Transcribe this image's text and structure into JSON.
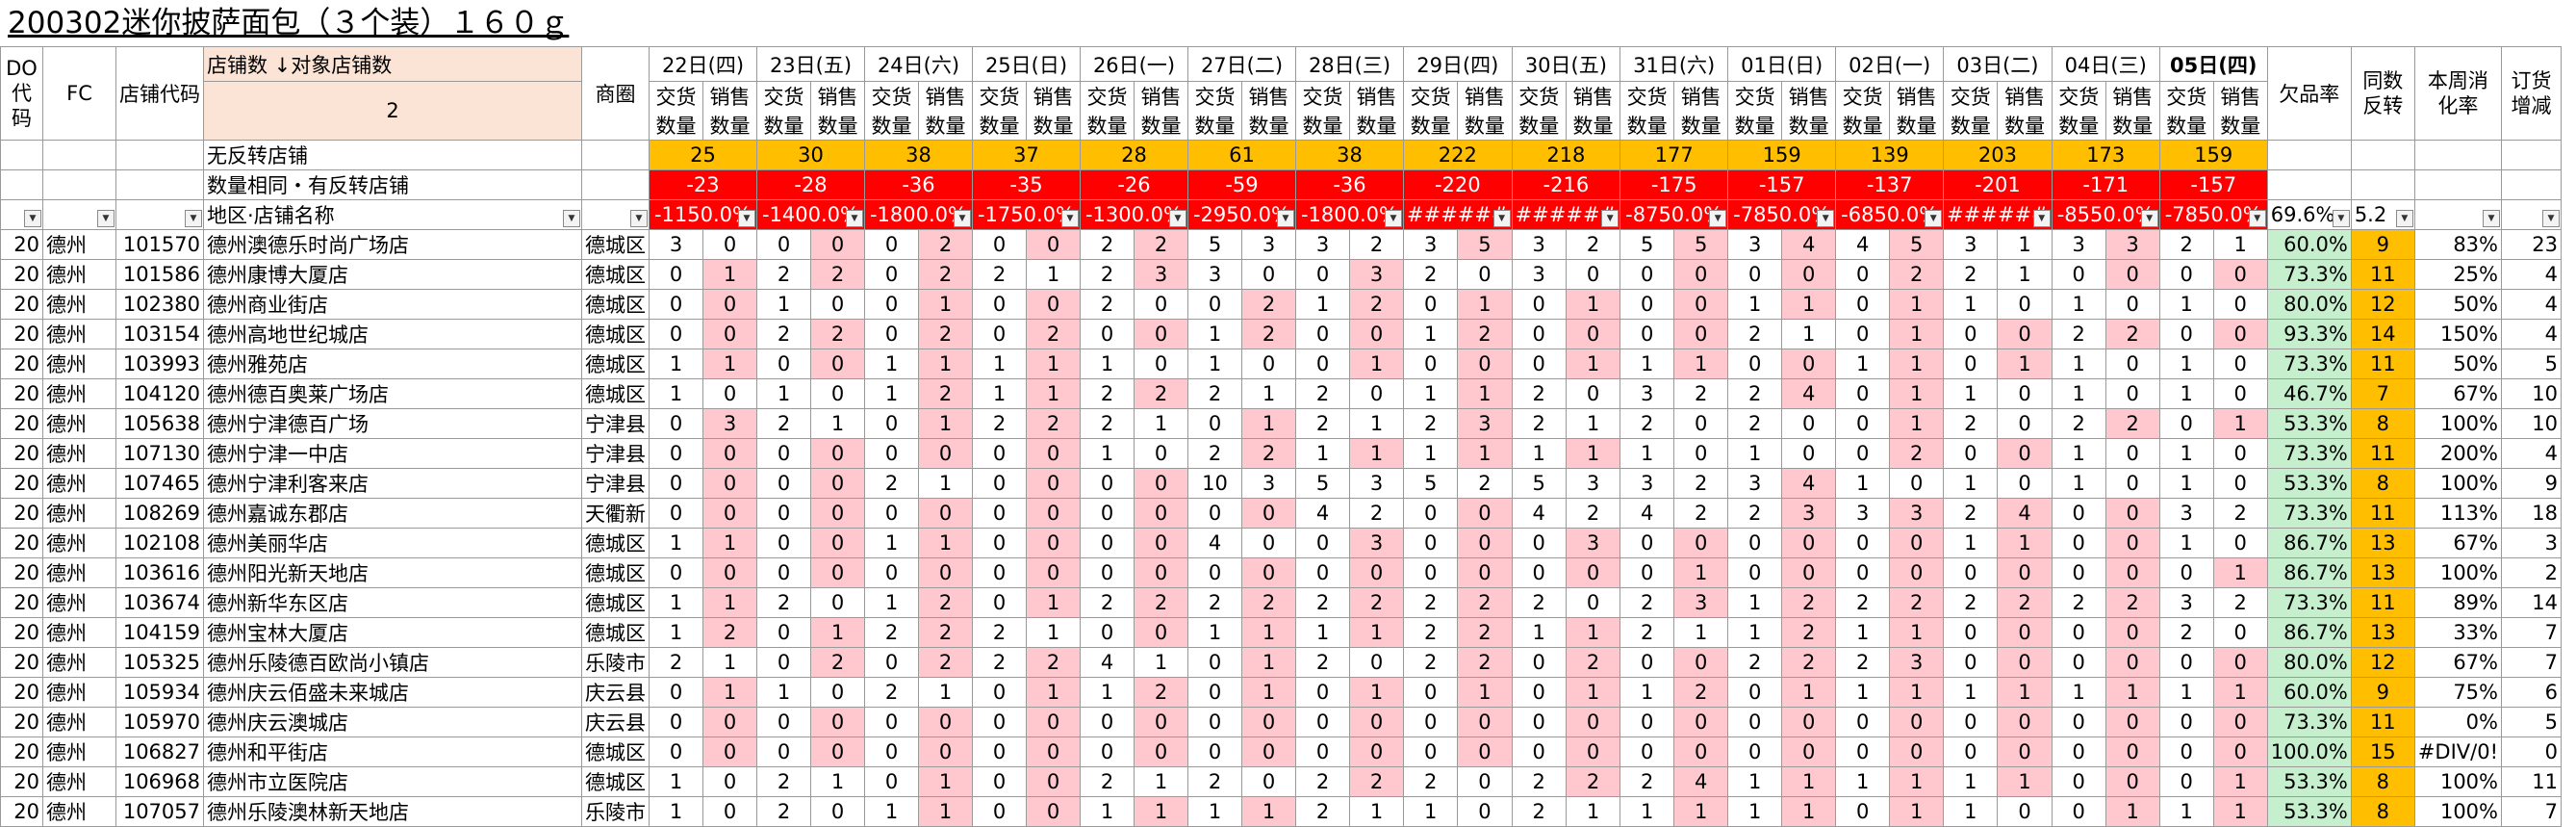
{
  "sheet_title": "200302迷你披萨面包（３个装）１６０ｇ",
  "labels": {
    "do": "DO代码",
    "fc": "FC",
    "store_code": "店铺代码",
    "store_count": "店铺数",
    "target_store_count": "对象店铺数",
    "target_value": "2",
    "shopping_area": "商圈",
    "delivery_qty": "交货数量",
    "sales_qty": "销售数量",
    "no_reversal": "无反转店铺",
    "same_qty_reversal": "数量相同・有反转店铺",
    "region_store": "地区·店铺名称",
    "stockout_rate": "欠品率",
    "same_reversal": "同数反转",
    "week_consumption": "本周消化率",
    "order_change": "订货增减"
  },
  "dates": [
    "22日(四)",
    "23日(五)",
    "24日(六)",
    "25日(日)",
    "26日(一)",
    "27日(二)",
    "28日(三)",
    "29日(四)",
    "30日(五)",
    "31日(六)",
    "01日(日)",
    "02日(一)",
    "03日(二)",
    "04日(三)",
    "05日(四)"
  ],
  "no_reversal_values": [
    "25",
    "30",
    "38",
    "37",
    "28",
    "61",
    "38",
    "222",
    "218",
    "177",
    "159",
    "139",
    "203",
    "173",
    "159"
  ],
  "same_qty_values": [
    "-23",
    "-28",
    "-36",
    "-35",
    "-26",
    "-59",
    "-36",
    "-220",
    "-216",
    "-175",
    "-157",
    "-137",
    "-201",
    "-171",
    "-157"
  ],
  "filter_values": [
    "-1150.0%",
    "-1400.0%",
    "-1800.0%",
    "-1750.0%",
    "-1300.0%",
    "-2950.0%",
    "-1800.0%",
    "######",
    "######",
    "-8750.0%",
    "-7850.0%",
    "-6850.0%",
    "######",
    "-8550.0%",
    "-7850.0%"
  ],
  "filter_summary": {
    "stockout": "69.6%",
    "reversal": "5.2"
  },
  "rows": [
    {
      "do": "20",
      "fc": "德州",
      "code": "101570",
      "name": "德州澳德乐时尚广场店",
      "area": "德城区",
      "v": [
        3,
        0,
        0,
        0,
        0,
        2,
        0,
        0,
        2,
        2,
        5,
        3,
        3,
        2,
        3,
        5,
        3,
        2,
        5,
        5,
        3,
        4,
        4,
        5,
        3,
        1,
        3,
        3,
        2,
        1
      ],
      "rate": "60.0%",
      "rev": "9",
      "cons": "83%",
      "chg": "23"
    },
    {
      "do": "20",
      "fc": "德州",
      "code": "101586",
      "name": "德州康博大厦店",
      "area": "德城区",
      "v": [
        0,
        1,
        2,
        2,
        0,
        2,
        2,
        1,
        2,
        3,
        3,
        0,
        0,
        3,
        2,
        0,
        3,
        0,
        0,
        0,
        0,
        0,
        0,
        2,
        2,
        1,
        0,
        0,
        0,
        0
      ],
      "rate": "73.3%",
      "rev": "11",
      "cons": "25%",
      "chg": "4"
    },
    {
      "do": "20",
      "fc": "德州",
      "code": "102380",
      "name": "德州商业街店",
      "area": "德城区",
      "v": [
        0,
        0,
        1,
        0,
        0,
        1,
        0,
        0,
        2,
        0,
        0,
        2,
        1,
        2,
        0,
        1,
        0,
        1,
        0,
        0,
        1,
        1,
        0,
        1,
        1,
        0,
        1,
        0,
        1,
        0
      ],
      "rate": "80.0%",
      "rev": "12",
      "cons": "50%",
      "chg": "4"
    },
    {
      "do": "20",
      "fc": "德州",
      "code": "103154",
      "name": "德州高地世纪城店",
      "area": "德城区",
      "v": [
        0,
        0,
        2,
        2,
        0,
        2,
        0,
        2,
        0,
        0,
        1,
        2,
        0,
        0,
        1,
        2,
        0,
        0,
        0,
        0,
        2,
        1,
        0,
        1,
        0,
        0,
        2,
        2,
        0,
        0
      ],
      "rate": "93.3%",
      "rev": "14",
      "cons": "150%",
      "chg": "4"
    },
    {
      "do": "20",
      "fc": "德州",
      "code": "103993",
      "name": "德州雅苑店",
      "area": "德城区",
      "v": [
        1,
        1,
        0,
        0,
        1,
        1,
        1,
        1,
        1,
        0,
        1,
        0,
        0,
        1,
        0,
        0,
        0,
        1,
        1,
        1,
        0,
        0,
        1,
        1,
        0,
        1,
        1,
        0,
        1,
        0
      ],
      "rate": "73.3%",
      "rev": "11",
      "cons": "50%",
      "chg": "5"
    },
    {
      "do": "20",
      "fc": "德州",
      "code": "104120",
      "name": "德州德百奥莱广场店",
      "area": "德城区",
      "v": [
        1,
        0,
        1,
        0,
        1,
        2,
        1,
        1,
        2,
        2,
        2,
        1,
        2,
        0,
        1,
        1,
        2,
        0,
        3,
        2,
        2,
        4,
        0,
        1,
        1,
        0,
        1,
        0,
        1,
        0
      ],
      "rate": "46.7%",
      "rev": "7",
      "cons": "67%",
      "chg": "10"
    },
    {
      "do": "20",
      "fc": "德州",
      "code": "105638",
      "name": "德州宁津德百广场",
      "area": "宁津县",
      "v": [
        0,
        3,
        2,
        1,
        0,
        1,
        2,
        2,
        2,
        1,
        0,
        1,
        2,
        1,
        2,
        3,
        2,
        1,
        2,
        0,
        2,
        0,
        0,
        1,
        2,
        0,
        2,
        2,
        0,
        1
      ],
      "rate": "53.3%",
      "rev": "8",
      "cons": "100%",
      "chg": "10"
    },
    {
      "do": "20",
      "fc": "德州",
      "code": "107130",
      "name": "德州宁津一中店",
      "area": "宁津县",
      "v": [
        0,
        0,
        0,
        0,
        0,
        0,
        0,
        0,
        1,
        0,
        2,
        2,
        1,
        1,
        1,
        1,
        1,
        1,
        1,
        0,
        1,
        0,
        0,
        2,
        0,
        0,
        1,
        0,
        1,
        0
      ],
      "rate": "73.3%",
      "rev": "11",
      "cons": "200%",
      "chg": "4"
    },
    {
      "do": "20",
      "fc": "德州",
      "code": "107465",
      "name": "德州宁津利客来店",
      "area": "宁津县",
      "v": [
        0,
        0,
        0,
        0,
        2,
        1,
        0,
        0,
        0,
        0,
        10,
        3,
        5,
        3,
        5,
        2,
        5,
        3,
        3,
        2,
        3,
        4,
        1,
        0,
        1,
        0,
        1,
        0,
        1,
        0
      ],
      "rate": "53.3%",
      "rev": "8",
      "cons": "100%",
      "chg": "9"
    },
    {
      "do": "20",
      "fc": "德州",
      "code": "108269",
      "name": "德州嘉诚东郡店",
      "area": "天衢新",
      "v": [
        0,
        0,
        0,
        0,
        0,
        0,
        0,
        0,
        0,
        0,
        0,
        0,
        4,
        2,
        0,
        0,
        4,
        2,
        4,
        2,
        2,
        3,
        3,
        3,
        2,
        4,
        0,
        0,
        3,
        2
      ],
      "rate": "73.3%",
      "rev": "11",
      "cons": "113%",
      "chg": "18"
    },
    {
      "do": "20",
      "fc": "德州",
      "code": "102108",
      "name": "德州美丽华店",
      "area": "德城区",
      "v": [
        1,
        1,
        0,
        0,
        1,
        1,
        0,
        0,
        0,
        0,
        4,
        0,
        0,
        3,
        0,
        0,
        0,
        3,
        0,
        0,
        0,
        0,
        0,
        0,
        1,
        1,
        0,
        0,
        1,
        0
      ],
      "rate": "86.7%",
      "rev": "13",
      "cons": "67%",
      "chg": "3"
    },
    {
      "do": "20",
      "fc": "德州",
      "code": "103616",
      "name": "德州阳光新天地店",
      "area": "德城区",
      "v": [
        0,
        0,
        0,
        0,
        0,
        0,
        0,
        0,
        0,
        0,
        0,
        0,
        0,
        0,
        0,
        0,
        0,
        0,
        0,
        1,
        0,
        0,
        0,
        0,
        0,
        0,
        0,
        0,
        0,
        1
      ],
      "rate": "86.7%",
      "rev": "13",
      "cons": "100%",
      "chg": "2"
    },
    {
      "do": "20",
      "fc": "德州",
      "code": "103674",
      "name": "德州新华东区店",
      "area": "德城区",
      "v": [
        1,
        1,
        2,
        0,
        1,
        2,
        0,
        1,
        2,
        2,
        2,
        2,
        2,
        2,
        2,
        2,
        2,
        0,
        2,
        3,
        1,
        2,
        2,
        2,
        2,
        2,
        2,
        2,
        3,
        2
      ],
      "rate": "73.3%",
      "rev": "11",
      "cons": "89%",
      "chg": "14"
    },
    {
      "do": "20",
      "fc": "德州",
      "code": "104159",
      "name": "德州宝林大厦店",
      "area": "德城区",
      "v": [
        1,
        2,
        0,
        1,
        2,
        2,
        2,
        1,
        0,
        0,
        1,
        1,
        1,
        1,
        2,
        2,
        1,
        1,
        2,
        1,
        1,
        2,
        1,
        1,
        0,
        0,
        0,
        0,
        2,
        0
      ],
      "rate": "86.7%",
      "rev": "13",
      "cons": "33%",
      "chg": "7"
    },
    {
      "do": "20",
      "fc": "德州",
      "code": "105325",
      "name": "德州乐陵德百欧尚小镇店",
      "area": "乐陵市",
      "v": [
        2,
        1,
        0,
        2,
        0,
        2,
        2,
        2,
        4,
        1,
        0,
        1,
        2,
        0,
        2,
        2,
        0,
        2,
        0,
        0,
        2,
        2,
        2,
        3,
        0,
        0,
        0,
        0,
        0,
        0
      ],
      "rate": "80.0%",
      "rev": "12",
      "cons": "67%",
      "chg": "7"
    },
    {
      "do": "20",
      "fc": "德州",
      "code": "105934",
      "name": "德州庆云佰盛未来城店",
      "area": "庆云县",
      "v": [
        0,
        1,
        1,
        0,
        2,
        1,
        0,
        1,
        1,
        2,
        0,
        1,
        0,
        1,
        0,
        1,
        0,
        1,
        1,
        2,
        0,
        1,
        1,
        1,
        1,
        1,
        1,
        1,
        1,
        1
      ],
      "rate": "60.0%",
      "rev": "9",
      "cons": "75%",
      "chg": "6"
    },
    {
      "do": "20",
      "fc": "德州",
      "code": "105970",
      "name": "德州庆云澳城店",
      "area": "庆云县",
      "v": [
        0,
        0,
        0,
        0,
        0,
        0,
        0,
        0,
        0,
        0,
        0,
        0,
        0,
        0,
        0,
        0,
        0,
        0,
        0,
        0,
        0,
        0,
        0,
        0,
        0,
        0,
        0,
        0,
        0,
        0
      ],
      "rate": "73.3%",
      "rev": "11",
      "cons": "0%",
      "chg": "5"
    },
    {
      "do": "20",
      "fc": "德州",
      "code": "106827",
      "name": "德州和平街店",
      "area": "德城区",
      "v": [
        0,
        0,
        0,
        0,
        0,
        0,
        0,
        0,
        0,
        0,
        0,
        0,
        0,
        0,
        0,
        0,
        0,
        0,
        0,
        0,
        0,
        0,
        0,
        0,
        0,
        0,
        0,
        0,
        0,
        0
      ],
      "rate": "100.0%",
      "rev": "15",
      "cons": "#DIV/0!",
      "chg": "0"
    },
    {
      "do": "20",
      "fc": "德州",
      "code": "106968",
      "name": "德州市立医院店",
      "area": "德城区",
      "v": [
        1,
        0,
        2,
        1,
        0,
        1,
        0,
        0,
        2,
        1,
        2,
        0,
        2,
        2,
        2,
        0,
        2,
        2,
        2,
        4,
        1,
        1,
        1,
        1,
        1,
        1,
        0,
        0,
        0,
        1
      ],
      "rate": "53.3%",
      "rev": "8",
      "cons": "100%",
      "chg": "11"
    },
    {
      "do": "20",
      "fc": "德州",
      "code": "107057",
      "name": "德州乐陵澳林新天地店",
      "area": "乐陵市",
      "v": [
        1,
        0,
        2,
        0,
        1,
        1,
        0,
        0,
        1,
        1,
        1,
        1,
        2,
        1,
        1,
        0,
        2,
        1,
        1,
        1,
        1,
        1,
        0,
        1,
        1,
        0,
        0,
        1,
        1,
        1
      ],
      "rate": "53.3%",
      "rev": "8",
      "cons": "100%",
      "chg": "7"
    }
  ]
}
